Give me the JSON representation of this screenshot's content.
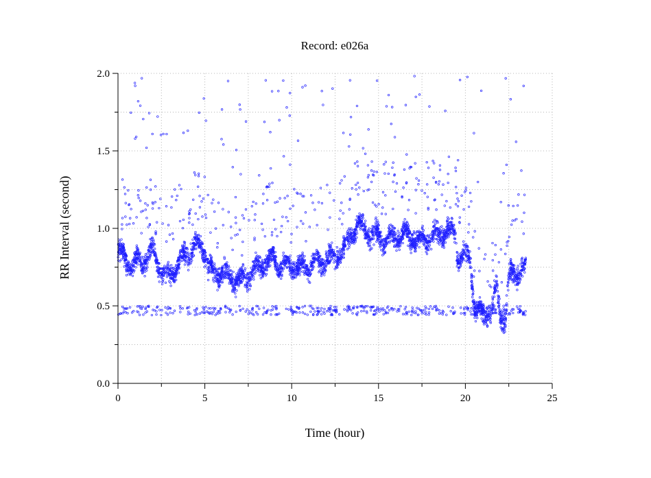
{
  "chart_data": {
    "type": "scatter",
    "title": "Record:  e026a",
    "xlabel": "Time (hour)",
    "ylabel": "RR Interval (second)",
    "xlim": [
      0,
      25
    ],
    "ylim": [
      0.0,
      2.0
    ],
    "xticks": [
      0,
      5,
      10,
      15,
      20,
      25
    ],
    "xtick_labels": [
      "0",
      "5",
      "10",
      "15",
      "20",
      "25"
    ],
    "yticks": [
      0.0,
      0.5,
      1.0,
      1.5,
      2.0
    ],
    "ytick_labels": [
      "0.0",
      "0.5",
      "1.0",
      "1.5",
      "2.0"
    ],
    "grid": true,
    "marker_color": "#1f1fff",
    "grid_color": "#b4b4b4",
    "series": [
      {
        "trend": [
          [
            0.0,
            0.86
          ],
          [
            0.4,
            0.8
          ],
          [
            0.8,
            0.76
          ],
          [
            1.2,
            0.78
          ],
          [
            1.6,
            0.8
          ],
          [
            2.0,
            0.86
          ],
          [
            2.4,
            0.74
          ],
          [
            2.8,
            0.68
          ],
          [
            3.2,
            0.73
          ],
          [
            3.6,
            0.78
          ],
          [
            4.0,
            0.85
          ],
          [
            4.4,
            0.88
          ],
          [
            4.8,
            0.9
          ],
          [
            5.0,
            0.86
          ],
          [
            5.2,
            0.74
          ],
          [
            5.6,
            0.7
          ],
          [
            6.0,
            0.72
          ],
          [
            6.5,
            0.68
          ],
          [
            7.0,
            0.66
          ],
          [
            7.5,
            0.7
          ],
          [
            8.0,
            0.74
          ],
          [
            8.5,
            0.78
          ],
          [
            9.0,
            0.8
          ],
          [
            9.5,
            0.74
          ],
          [
            10.0,
            0.76
          ],
          [
            10.5,
            0.74
          ],
          [
            11.0,
            0.76
          ],
          [
            11.5,
            0.78
          ],
          [
            12.0,
            0.8
          ],
          [
            12.5,
            0.82
          ],
          [
            13.0,
            0.86
          ],
          [
            13.4,
            0.96
          ],
          [
            13.8,
            1.02
          ],
          [
            14.2,
            1.0
          ],
          [
            14.6,
            0.96
          ],
          [
            15.0,
            0.94
          ],
          [
            15.5,
            0.92
          ],
          [
            16.0,
            0.94
          ],
          [
            16.5,
            0.96
          ],
          [
            17.0,
            0.94
          ],
          [
            17.5,
            0.92
          ],
          [
            18.0,
            0.94
          ],
          [
            18.5,
            0.96
          ],
          [
            19.0,
            0.98
          ],
          [
            19.4,
            0.96
          ],
          [
            19.6,
            0.82
          ],
          [
            20.0,
            0.82
          ],
          [
            20.3,
            0.8
          ],
          [
            20.5,
            0.5
          ],
          [
            21.0,
            0.44
          ],
          [
            21.5,
            0.46
          ],
          [
            21.8,
            0.62
          ],
          [
            22.0,
            0.45
          ],
          [
            22.3,
            0.4
          ],
          [
            22.5,
            0.68
          ],
          [
            23.0,
            0.72
          ],
          [
            23.5,
            0.74
          ]
        ],
        "end_hour": 23.5,
        "spread": 0.06,
        "outlier_band_low": [
          0.44,
          0.5
        ],
        "outlier_band_high": [
          1.1,
          1.6
        ]
      }
    ]
  }
}
